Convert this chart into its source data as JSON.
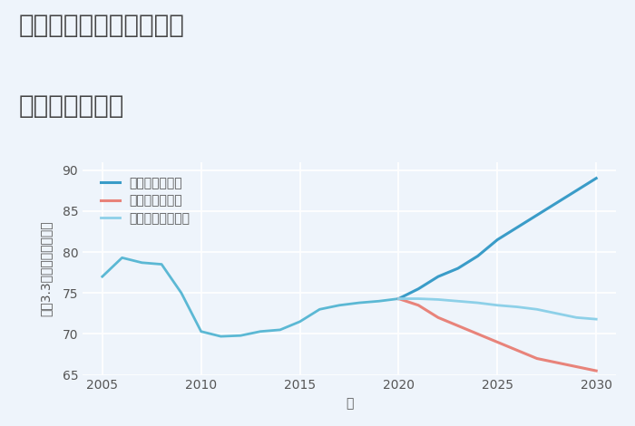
{
  "title_line1": "大阪府豊中市服部豊町の",
  "title_line2": "土地の価格推移",
  "xlabel": "年",
  "ylabel": "坪（3.3㎡）単価（万円）",
  "xlim": [
    2004,
    2031
  ],
  "ylim": [
    65,
    91
  ],
  "yticks": [
    65,
    70,
    75,
    80,
    85,
    90
  ],
  "xticks": [
    2005,
    2010,
    2015,
    2020,
    2025,
    2030
  ],
  "background_color": "#eef4fb",
  "plot_bg_color": "#eef4fb",
  "grid_color": "#ffffff",
  "historical": {
    "years": [
      2005,
      2006,
      2007,
      2008,
      2009,
      2010,
      2011,
      2012,
      2013,
      2014,
      2015,
      2016,
      2017,
      2018,
      2019,
      2020
    ],
    "values": [
      77.0,
      79.3,
      78.7,
      78.5,
      75.0,
      70.3,
      69.7,
      69.8,
      70.3,
      70.5,
      71.5,
      73.0,
      73.5,
      73.8,
      74.0,
      74.3
    ],
    "color": "#5bb8d4",
    "linewidth": 2.0
  },
  "good": {
    "years": [
      2020,
      2021,
      2022,
      2023,
      2024,
      2025,
      2026,
      2027,
      2028,
      2029,
      2030
    ],
    "values": [
      74.3,
      75.5,
      77.0,
      78.0,
      79.5,
      81.5,
      83.0,
      84.5,
      86.0,
      87.5,
      89.0
    ],
    "color": "#3a9cc8",
    "linewidth": 2.2,
    "label": "グッドシナリオ"
  },
  "bad": {
    "years": [
      2020,
      2021,
      2022,
      2023,
      2024,
      2025,
      2026,
      2027,
      2028,
      2029,
      2030
    ],
    "values": [
      74.3,
      73.5,
      72.0,
      71.0,
      70.0,
      69.0,
      68.0,
      67.0,
      66.5,
      66.0,
      65.5
    ],
    "color": "#e8837a",
    "linewidth": 2.2,
    "label": "バッドシナリオ"
  },
  "normal": {
    "years": [
      2020,
      2021,
      2022,
      2023,
      2024,
      2025,
      2026,
      2027,
      2028,
      2029,
      2030
    ],
    "values": [
      74.3,
      74.3,
      74.2,
      74.0,
      73.8,
      73.5,
      73.3,
      73.0,
      72.5,
      72.0,
      71.8
    ],
    "color": "#8dd0e8",
    "linewidth": 2.0,
    "label": "ノーマルシナリオ"
  },
  "title_color": "#444444",
  "title_fontsize": 20,
  "axis_label_fontsize": 10,
  "tick_fontsize": 10,
  "legend_fontsize": 10
}
